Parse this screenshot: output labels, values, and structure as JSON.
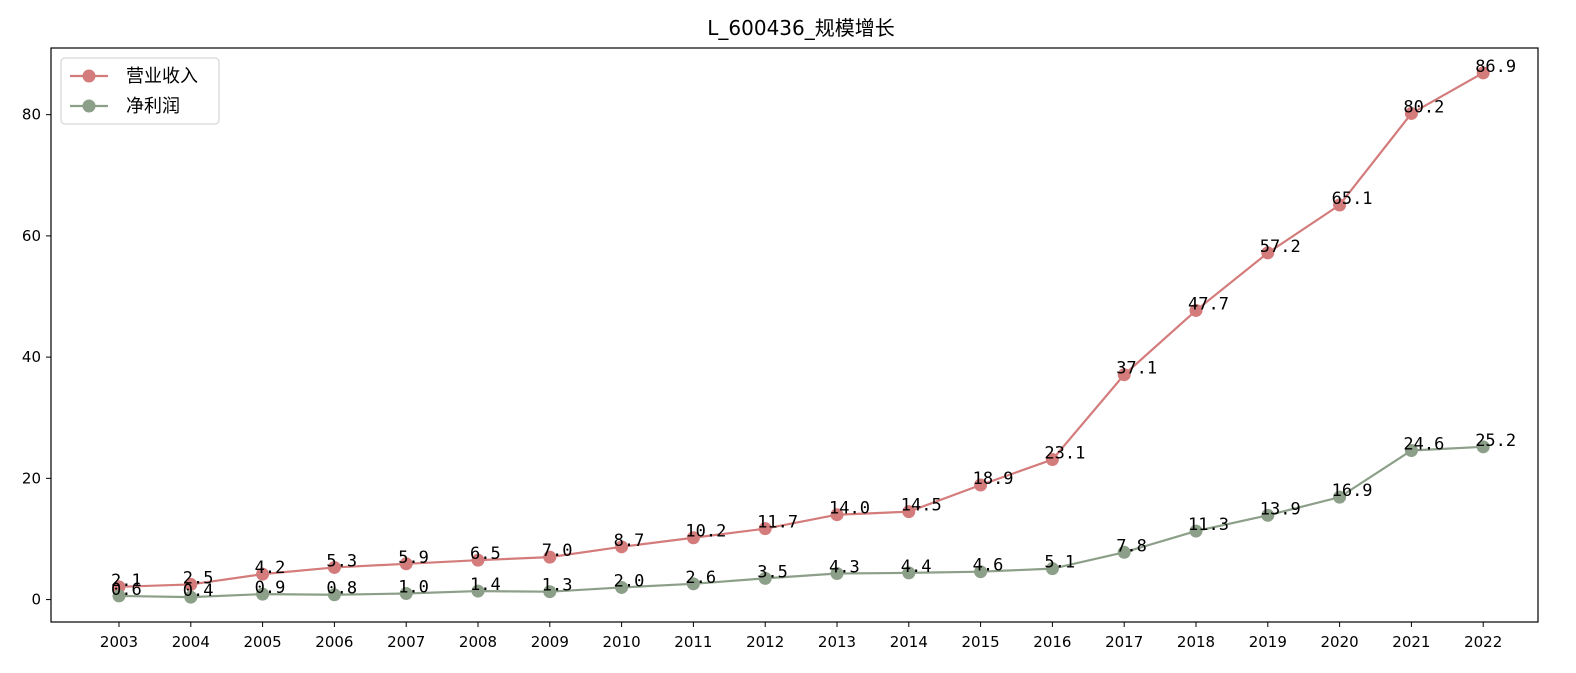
{
  "chart_data": {
    "type": "line",
    "title": "L_600436_规模增长",
    "xlabel": "",
    "ylabel": "",
    "categories": [
      "2003",
      "2004",
      "2005",
      "2006",
      "2007",
      "2008",
      "2009",
      "2010",
      "2011",
      "2012",
      "2013",
      "2014",
      "2015",
      "2016",
      "2017",
      "2018",
      "2019",
      "2020",
      "2021",
      "2022"
    ],
    "ylim": [
      -3.7,
      91.0
    ],
    "yticks": [
      0,
      20,
      40,
      60,
      80
    ],
    "grid": false,
    "legend": "top-left",
    "series": [
      {
        "name": "营业收入",
        "color": "#d47b7b",
        "values": [
          2.1,
          2.5,
          4.2,
          5.3,
          5.9,
          6.5,
          7.0,
          8.7,
          10.2,
          11.7,
          14.0,
          14.5,
          18.9,
          23.1,
          37.1,
          47.7,
          57.2,
          65.1,
          80.2,
          86.9
        ]
      },
      {
        "name": "净利润",
        "color": "#8c9f88",
        "values": [
          0.6,
          0.4,
          0.9,
          0.8,
          1.0,
          1.4,
          1.3,
          2.0,
          2.6,
          3.5,
          4.3,
          4.4,
          4.6,
          5.1,
          7.8,
          11.3,
          13.9,
          16.9,
          24.6,
          25.2
        ]
      }
    ]
  }
}
